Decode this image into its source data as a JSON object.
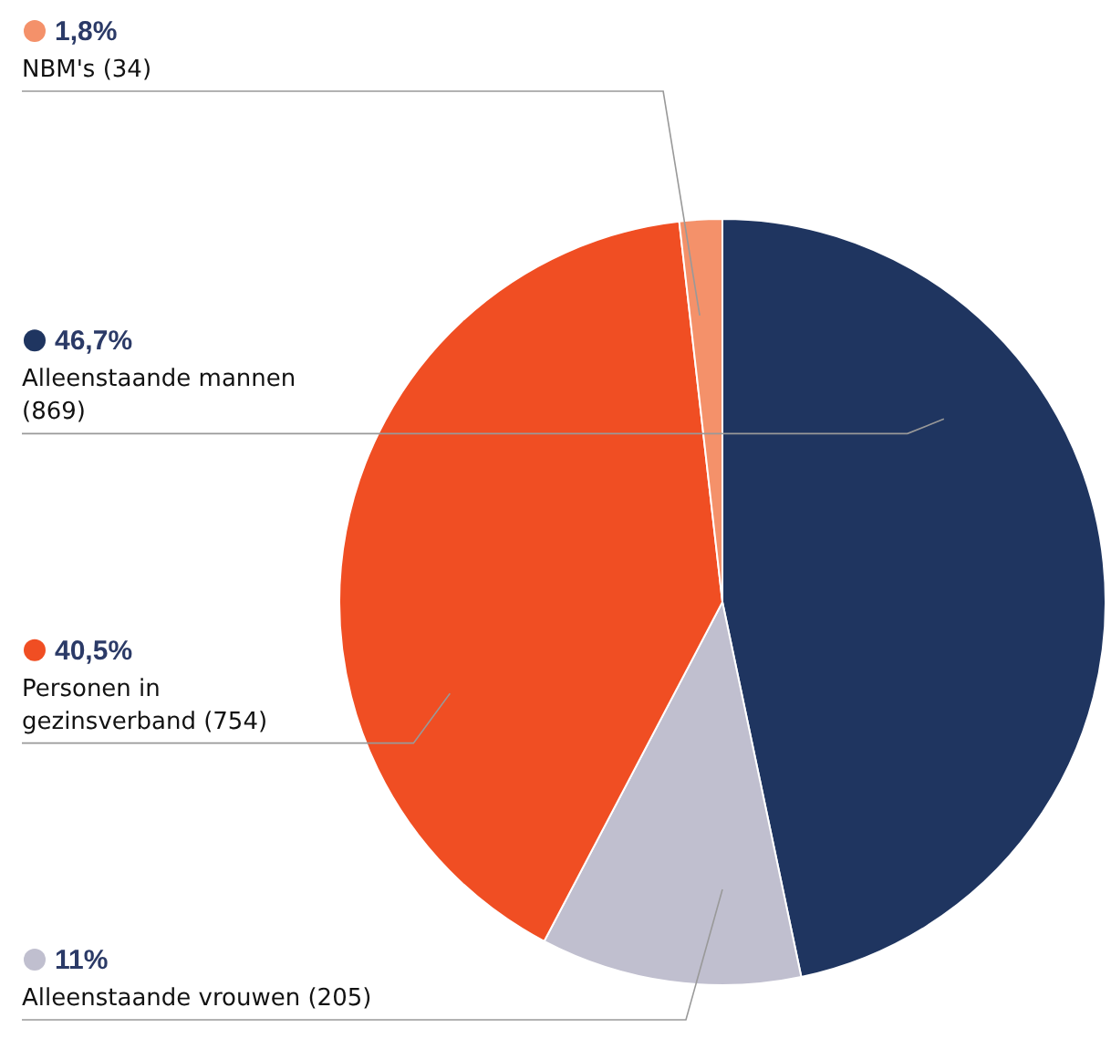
{
  "chart_data": {
    "type": "pie",
    "categories": [
      "Alleenstaande mannen (869)",
      "Alleenstaande vrouwen (205)",
      "Personen in gezinsverband (754)",
      "NBM's (34)"
    ],
    "values": [
      46.7,
      11,
      40.5,
      1.8
    ],
    "value_labels": [
      "46,7%",
      "11%",
      "40,5%",
      "1,8%"
    ],
    "colors": [
      "#1f3560",
      "#c0bfcf",
      "#f04e23",
      "#f4916a"
    ],
    "legend": "left"
  }
}
